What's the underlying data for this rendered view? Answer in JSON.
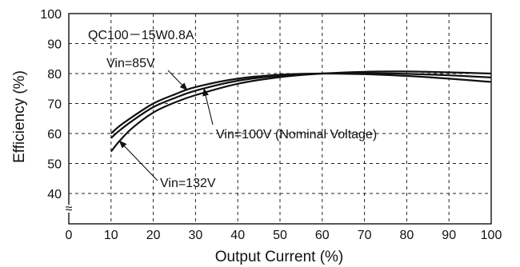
{
  "chart_data": {
    "type": "line",
    "model_label": "QC100－15W0.8A",
    "xlabel": "Output Current (%)",
    "ylabel": "Efficiency (%)",
    "xlim": [
      0,
      100
    ],
    "ylim": [
      35,
      100
    ],
    "x_ticks": [
      "0",
      "10",
      "20",
      "30",
      "40",
      "50",
      "60",
      "70",
      "80",
      "90",
      "100"
    ],
    "y_ticks": [
      "40",
      "50",
      "60",
      "70",
      "80",
      "90",
      "100"
    ],
    "axis_break_symbol": "≈",
    "grid": true,
    "series": [
      {
        "name": "Vin=85V",
        "x": [
          10,
          12,
          15,
          20,
          25,
          30,
          40,
          50,
          60,
          70,
          80,
          90,
          100
        ],
        "y": [
          60,
          62.5,
          65.5,
          70,
          73,
          75.5,
          78.3,
          79.6,
          80.0,
          79.8,
          79.2,
          78.3,
          77.2
        ]
      },
      {
        "name": "Vin=100V (Nominal Voltage)",
        "x": [
          10,
          12,
          15,
          20,
          25,
          30,
          40,
          50,
          60,
          70,
          80,
          90,
          100
        ],
        "y": [
          58.5,
          61,
          64.2,
          68.8,
          71.8,
          74.3,
          77.6,
          79.3,
          80.0,
          80.1,
          79.9,
          79.4,
          78.7
        ]
      },
      {
        "name": "Vin=132V",
        "x": [
          10,
          12,
          15,
          20,
          25,
          30,
          40,
          50,
          60,
          70,
          80,
          90,
          100
        ],
        "y": [
          54,
          57.5,
          61.8,
          67,
          70.3,
          72.8,
          76.6,
          78.8,
          80.0,
          80.6,
          80.7,
          80.4,
          80.0
        ]
      }
    ],
    "annotations": [
      {
        "text": "Vin=85V",
        "series": 0,
        "point_x": 28
      },
      {
        "text": "Vin=100V (Nominal Voltage)",
        "series": 1,
        "point_x": 32
      },
      {
        "text": "Vin=132V",
        "series": 2,
        "point_x": 12
      }
    ]
  }
}
